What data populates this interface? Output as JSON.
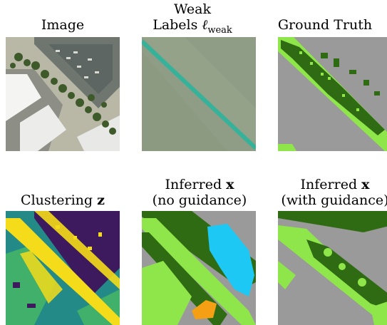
{
  "top_row": {
    "image_title": "Image",
    "weak_title_line1": "Weak",
    "weak_title_line2_prefix": "Labels ",
    "weak_symbol": "ℓ",
    "weak_subscript": "weak",
    "gt_title": "Ground Truth"
  },
  "bottom_row": {
    "clustering_title_prefix": "Clustering ",
    "clustering_symbol": "z",
    "inferred_title_prefix": "Inferred ",
    "inferred_symbol": "x",
    "no_guidance": "(no guidance)",
    "with_guidance": "(with guidance)"
  },
  "colors": {
    "gray": "#9a9a9a",
    "dark_green": "#2f6b12",
    "light_green": "#8fe64b",
    "cyan": "#1ec8f5",
    "orange": "#f5a014",
    "cluster_purple": "#3d1a5e",
    "cluster_teal": "#238a87",
    "cluster_green": "#40b06a",
    "cluster_yellow": "#f5dc1a"
  }
}
